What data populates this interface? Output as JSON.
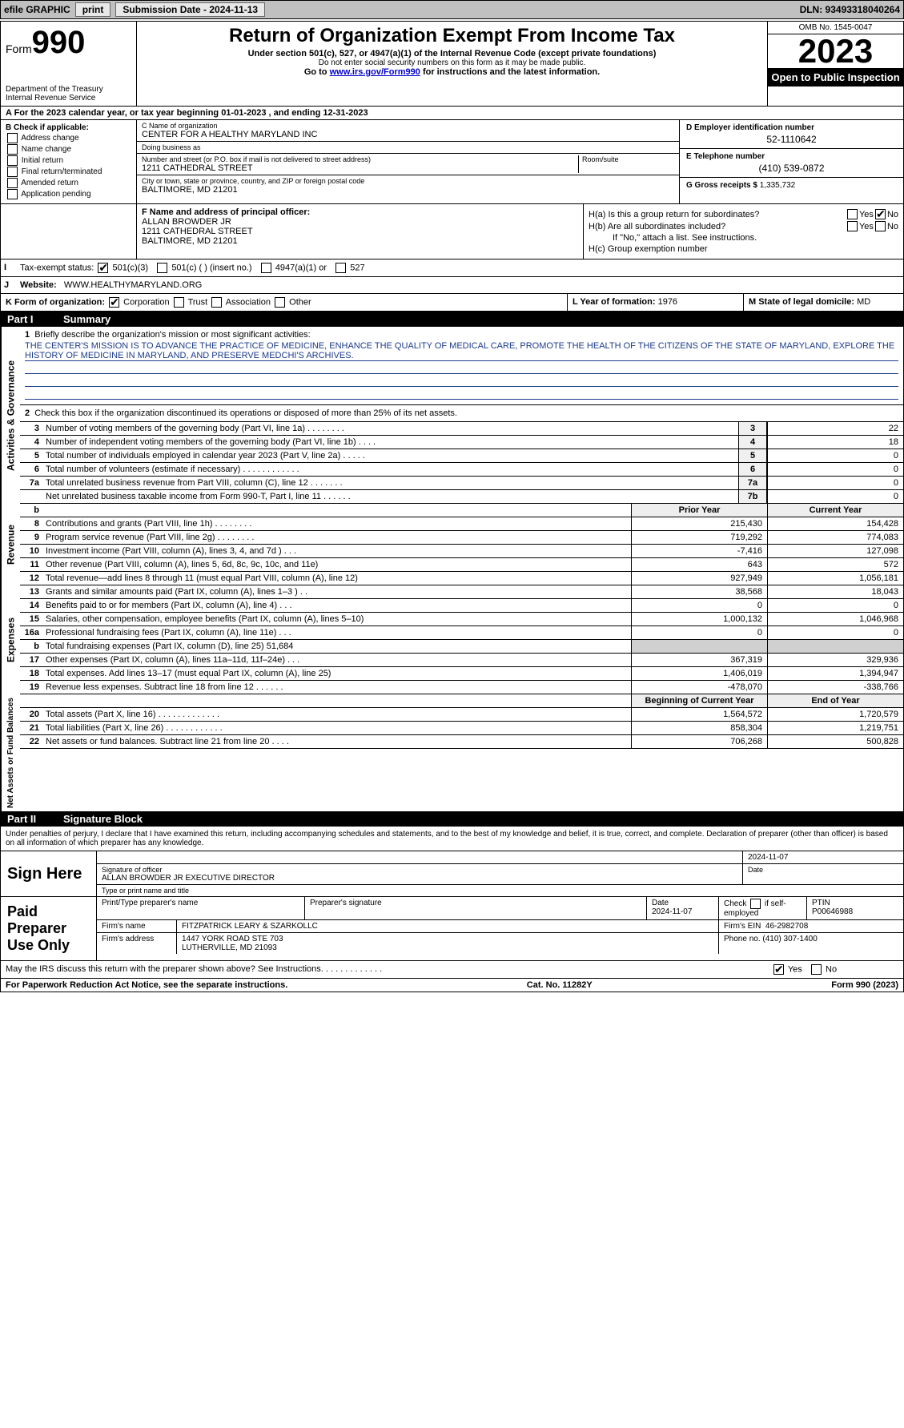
{
  "topbar": {
    "efile": "efile GRAPHIC",
    "print": "print",
    "sub_label": "Submission Date - 2024-11-13",
    "dln": "DLN: 93493318040264"
  },
  "header": {
    "form_word": "Form",
    "form_num": "990",
    "dept1": "Department of the Treasury",
    "dept2": "Internal Revenue Service",
    "title": "Return of Organization Exempt From Income Tax",
    "sub1": "Under section 501(c), 527, or 4947(a)(1) of the Internal Revenue Code (except private foundations)",
    "sub2": "Do not enter social security numbers on this form as it may be made public.",
    "sub3_pre": "Go to ",
    "sub3_link": "www.irs.gov/Form990",
    "sub3_post": " for instructions and the latest information.",
    "omb": "OMB No. 1545-0047",
    "year": "2023",
    "inspect": "Open to Public Inspection"
  },
  "row_a": "A   For the 2023 calendar year, or tax year beginning 01-01-2023   , and ending 12-31-2023",
  "col_b": {
    "title": "B Check if applicable:",
    "opts": [
      "Address change",
      "Name change",
      "Initial return",
      "Final return/terminated",
      "Amended return",
      "Application pending"
    ]
  },
  "col_c": {
    "name_label": "C Name of organization",
    "name": "CENTER FOR A HEALTHY MARYLAND INC",
    "dba_label": "Doing business as",
    "dba": "",
    "addr_label": "Number and street (or P.O. box if mail is not delivered to street address)",
    "room_label": "Room/suite",
    "addr": "1211 CATHEDRAL STREET",
    "city_label": "City or town, state or province, country, and ZIP or foreign postal code",
    "city": "BALTIMORE, MD  21201"
  },
  "col_de": {
    "d_label": "D Employer identification number",
    "d_val": "52-1110642",
    "e_label": "E Telephone number",
    "e_val": "(410) 539-0872",
    "g_label": "G Gross receipts $",
    "g_val": "1,335,732"
  },
  "f": {
    "label": "F Name and address of principal officer:",
    "name": "ALLAN BROWDER JR",
    "addr1": "1211 CATHEDRAL STREET",
    "addr2": "BALTIMORE, MD  21201"
  },
  "h": {
    "ha_label": "H(a)  Is this a group return for subordinates?",
    "hb_label": "H(b)  Are all subordinates included?",
    "hb_note": "If \"No,\" attach a list. See instructions.",
    "hc_label": "H(c)  Group exemption number",
    "yes": "Yes",
    "no": "No"
  },
  "i": {
    "label": "Tax-exempt status:",
    "o1": "501(c)(3)",
    "o2": "501(c) (  ) (insert no.)",
    "o3": "4947(a)(1) or",
    "o4": "527"
  },
  "j": {
    "label": "Website:",
    "val": "WWW.HEALTHYMARYLAND.ORG"
  },
  "k": {
    "label": "K Form of organization:",
    "o1": "Corporation",
    "o2": "Trust",
    "o3": "Association",
    "o4": "Other"
  },
  "l": {
    "label": "L Year of formation:",
    "val": "1976"
  },
  "m": {
    "label": "M State of legal domicile:",
    "val": "MD"
  },
  "part1": {
    "num": "Part I",
    "title": "Summary"
  },
  "sides": {
    "ag": "Activities & Governance",
    "rev": "Revenue",
    "exp": "Expenses",
    "na": "Net Assets or Fund Balances"
  },
  "q1": {
    "num": "1",
    "label": "Briefly describe the organization's mission or most significant activities:",
    "text": "THE CENTER'S MISSION IS TO ADVANCE THE PRACTICE OF MEDICINE, ENHANCE THE QUALITY OF MEDICAL CARE, PROMOTE THE HEALTH OF THE CITIZENS OF THE STATE OF MARYLAND, EXPLORE THE HISTORY OF MEDICINE IN MARYLAND, AND PRESERVE MEDCHI'S ARCHIVES."
  },
  "q2": {
    "num": "2",
    "label": "Check this box      if the organization discontinued its operations or disposed of more than 25% of its net assets."
  },
  "lines_single": [
    {
      "num": "3",
      "desc": "Number of voting members of the governing body (Part VI, line 1a)  .   .   .   .   .   .   .   .",
      "box": "3",
      "val": "22"
    },
    {
      "num": "4",
      "desc": "Number of independent voting members of the governing body (Part VI, line 1b)  .   .   .   .",
      "box": "4",
      "val": "18"
    },
    {
      "num": "5",
      "desc": "Total number of individuals employed in calendar year 2023 (Part V, line 2a)  .   .   .   .   .",
      "box": "5",
      "val": "0"
    },
    {
      "num": "6",
      "desc": "Total number of volunteers (estimate if necessary)   .   .   .   .   .   .   .   .   .   .   .   .",
      "box": "6",
      "val": "0"
    },
    {
      "num": "7a",
      "desc": "Total unrelated business revenue from Part VIII, column (C), line 12  .   .   .   .   .   .   .",
      "box": "7a",
      "val": "0"
    },
    {
      "num": "",
      "desc": "Net unrelated business taxable income from Form 990-T, Part I, line 11  .   .   .   .   .   .",
      "box": "7b",
      "val": "0"
    }
  ],
  "rev_hdr": {
    "c1": "Prior Year",
    "c2": "Current Year"
  },
  "rev_b": "b",
  "rev_lines": [
    {
      "num": "8",
      "desc": "Contributions and grants (Part VIII, line 1h)   .   .   .   .   .   .   .   .",
      "v1": "215,430",
      "v2": "154,428"
    },
    {
      "num": "9",
      "desc": "Program service revenue (Part VIII, line 2g)   .   .   .   .   .   .   .   .",
      "v1": "719,292",
      "v2": "774,083"
    },
    {
      "num": "10",
      "desc": "Investment income (Part VIII, column (A), lines 3, 4, and 7d )   .   .   .",
      "v1": "-7,416",
      "v2": "127,098"
    },
    {
      "num": "11",
      "desc": "Other revenue (Part VIII, column (A), lines 5, 6d, 8c, 9c, 10c, and 11e)",
      "v1": "643",
      "v2": "572"
    },
    {
      "num": "12",
      "desc": "Total revenue—add lines 8 through 11 (must equal Part VIII, column (A), line 12)",
      "v1": "927,949",
      "v2": "1,056,181"
    }
  ],
  "exp_lines": [
    {
      "num": "13",
      "desc": "Grants and similar amounts paid (Part IX, column (A), lines 1–3 )  .   .",
      "v1": "38,568",
      "v2": "18,043"
    },
    {
      "num": "14",
      "desc": "Benefits paid to or for members (Part IX, column (A), line 4)  .   .   .",
      "v1": "0",
      "v2": "0"
    },
    {
      "num": "15",
      "desc": "Salaries, other compensation, employee benefits (Part IX, column (A), lines 5–10)",
      "v1": "1,000,132",
      "v2": "1,046,968"
    },
    {
      "num": "16a",
      "desc": "Professional fundraising fees (Part IX, column (A), line 11e)  .   .   .",
      "v1": "0",
      "v2": "0"
    },
    {
      "num": "b",
      "desc": "Total fundraising expenses (Part IX, column (D), line 25) 51,684",
      "v1": "",
      "v2": "",
      "shade": true
    },
    {
      "num": "17",
      "desc": "Other expenses (Part IX, column (A), lines 11a–11d, 11f–24e)  .   .   .",
      "v1": "367,319",
      "v2": "329,936"
    },
    {
      "num": "18",
      "desc": "Total expenses. Add lines 13–17 (must equal Part IX, column (A), line 25)",
      "v1": "1,406,019",
      "v2": "1,394,947"
    },
    {
      "num": "19",
      "desc": "Revenue less expenses. Subtract line 18 from line 12  .   .   .   .   .   .",
      "v1": "-478,070",
      "v2": "-338,766"
    }
  ],
  "na_hdr": {
    "c1": "Beginning of Current Year",
    "c2": "End of Year"
  },
  "na_lines": [
    {
      "num": "20",
      "desc": "Total assets (Part X, line 16)  .   .   .   .   .   .   .   .   .   .   .   .   .",
      "v1": "1,564,572",
      "v2": "1,720,579"
    },
    {
      "num": "21",
      "desc": "Total liabilities (Part X, line 26)  .   .   .   .   .   .   .   .   .   .   .   .",
      "v1": "858,304",
      "v2": "1,219,751"
    },
    {
      "num": "22",
      "desc": "Net assets or fund balances. Subtract line 21 from line 20  .   .   .   .",
      "v1": "706,268",
      "v2": "500,828"
    }
  ],
  "part2": {
    "num": "Part II",
    "title": "Signature Block"
  },
  "penalty": "Under penalties of perjury, I declare that I have examined this return, including accompanying schedules and statements, and to the best of my knowledge and belief, it is true, correct, and complete. Declaration of preparer (other than officer) is based on all information of which preparer has any knowledge.",
  "sign": {
    "label": "Sign Here",
    "date": "2024-11-07",
    "sig_label": "Signature of officer",
    "name": "ALLAN BROWDER JR  EXECUTIVE DIRECTOR",
    "name_label": "Type or print name and title",
    "date_label": "Date"
  },
  "paid": {
    "label": "Paid Preparer Use Only",
    "h1": "Print/Type preparer's name",
    "h2": "Preparer's signature",
    "h3": "Date",
    "h3v": "2024-11-07",
    "h4": "Check      if self-employed",
    "h5": "PTIN",
    "h5v": "P00646988",
    "firm_label": "Firm's name",
    "firm": "FITZPATRICK LEARY & SZARKOLLC",
    "ein_label": "Firm's EIN",
    "ein": "46-2982708",
    "addr_label": "Firm's address",
    "addr1": "1447 YORK ROAD STE 703",
    "addr2": "LUTHERVILLE, MD  21093",
    "phone_label": "Phone no.",
    "phone": "(410) 307-1400"
  },
  "discuss": {
    "label": "May the IRS discuss this return with the preparer shown above? See Instructions.  .   .   .   .   .   .   .   .   .   .   .   .",
    "yes": "Yes",
    "no": "No"
  },
  "footer": {
    "left": "For Paperwork Reduction Act Notice, see the separate instructions.",
    "mid": "Cat. No. 11282Y",
    "right": "Form 990 (2023)"
  }
}
